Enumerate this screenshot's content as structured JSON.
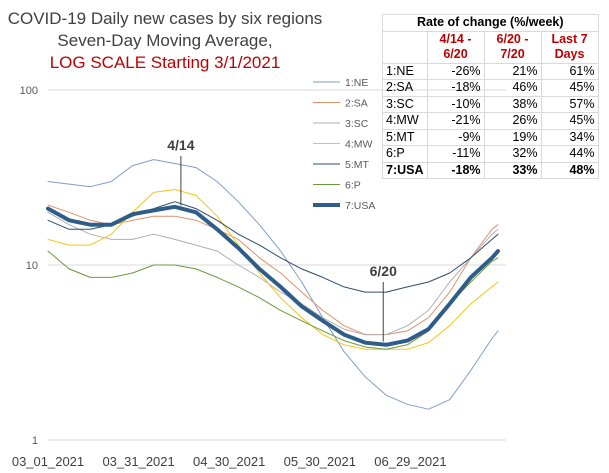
{
  "title": {
    "line1": "COVID-19 Daily new cases by six regions",
    "line2": "Seven-Day Moving Average,",
    "line3": "LOG SCALE Starting 3/1/2021"
  },
  "table": {
    "title": "Rate of change (%/week)",
    "headers": [
      "4/14 - 6/20",
      "6/20 - 7/20",
      "Last 7 Days"
    ],
    "rows": [
      {
        "label": "1:NE",
        "values": [
          "-26%",
          "21%",
          "61%"
        ],
        "bold": false
      },
      {
        "label": "2:SA",
        "values": [
          "-18%",
          "46%",
          "45%"
        ],
        "bold": false
      },
      {
        "label": "3:SC",
        "values": [
          "-10%",
          "38%",
          "57%"
        ],
        "bold": false
      },
      {
        "label": "4:MW",
        "values": [
          "-21%",
          "26%",
          "45%"
        ],
        "bold": false
      },
      {
        "label": "5:MT",
        "values": [
          "-9%",
          "19%",
          "34%"
        ],
        "bold": false
      },
      {
        "label": "6:P",
        "values": [
          "-11%",
          "32%",
          "44%"
        ],
        "bold": false
      },
      {
        "label": "7:USA",
        "values": [
          "-18%",
          "33%",
          "48%"
        ],
        "bold": true
      }
    ]
  },
  "chart_data": {
    "type": "line",
    "yscale": "log",
    "ylim": [
      1,
      100
    ],
    "y_ticks": [
      1,
      10,
      100
    ],
    "x_ticks": [
      "03_01_2021",
      "03_31_2021",
      "04_30_2021",
      "05_30_2021",
      "06_29_2021"
    ],
    "x_range": [
      "03_01_2021",
      "07_28_2021"
    ],
    "legend_position": "top-center",
    "annotations": [
      {
        "label": "4/14",
        "x": "04_14_2021"
      },
      {
        "label": "6/20",
        "x": "06_20_2021"
      }
    ],
    "series": [
      {
        "name": "1:NE",
        "color": "#7f9ec8",
        "width": 1,
        "x": [
          "03_01_2021",
          "03_08_2021",
          "03_15_2021",
          "03_22_2021",
          "03_29_2021",
          "04_05_2021",
          "04_12_2021",
          "04_19_2021",
          "04_26_2021",
          "05_03_2021",
          "05_10_2021",
          "05_17_2021",
          "05_24_2021",
          "05_31_2021",
          "06_07_2021",
          "06_14_2021",
          "06_21_2021",
          "06_28_2021",
          "07_05_2021",
          "07_12_2021",
          "07_19_2021",
          "07_26_2021",
          "07_28_2021"
        ],
        "values": [
          30,
          29,
          28,
          30,
          37,
          40,
          38,
          36,
          30,
          23,
          17,
          12,
          8,
          5,
          3.2,
          2.3,
          1.8,
          1.6,
          1.5,
          1.7,
          2.5,
          3.8,
          4.2
        ]
      },
      {
        "name": "2:SA",
        "color": "#e0926b",
        "width": 1,
        "x": [
          "03_01_2021",
          "03_08_2021",
          "03_15_2021",
          "03_22_2021",
          "03_29_2021",
          "04_05_2021",
          "04_12_2021",
          "04_19_2021",
          "04_26_2021",
          "05_03_2021",
          "05_10_2021",
          "05_17_2021",
          "05_24_2021",
          "05_31_2021",
          "06_07_2021",
          "06_14_2021",
          "06_21_2021",
          "06_28_2021",
          "07_05_2021",
          "07_12_2021",
          "07_19_2021",
          "07_26_2021",
          "07_28_2021"
        ],
        "values": [
          22,
          20,
          18,
          17,
          18,
          19,
          19,
          18,
          16,
          14,
          11,
          9,
          7,
          5.5,
          4.5,
          4,
          4,
          4.2,
          5,
          7,
          11,
          16,
          17
        ]
      },
      {
        "name": "3:SC",
        "color": "#b0b0b0",
        "width": 1,
        "x": [
          "03_01_2021",
          "03_08_2021",
          "03_15_2021",
          "03_22_2021",
          "03_29_2021",
          "04_05_2021",
          "04_12_2021",
          "04_19_2021",
          "04_26_2021",
          "05_03_2021",
          "05_10_2021",
          "05_17_2021",
          "05_24_2021",
          "05_31_2021",
          "06_07_2021",
          "06_14_2021",
          "06_21_2021",
          "06_28_2021",
          "07_05_2021",
          "07_12_2021",
          "07_19_2021",
          "07_26_2021",
          "07_28_2021"
        ],
        "values": [
          20,
          17,
          15,
          14,
          14,
          15,
          14,
          13,
          12,
          10,
          8.5,
          7,
          6,
          5,
          4.3,
          4,
          4,
          4.5,
          5.5,
          8,
          11,
          15,
          16
        ]
      },
      {
        "name": "4:MW",
        "color": "#f5c518",
        "width": 1,
        "x": [
          "03_01_2021",
          "03_08_2021",
          "03_15_2021",
          "03_22_2021",
          "03_29_2021",
          "04_05_2021",
          "04_12_2021",
          "04_19_2021",
          "04_26_2021",
          "05_03_2021",
          "05_10_2021",
          "05_17_2021",
          "05_24_2021",
          "05_31_2021",
          "06_07_2021",
          "06_14_2021",
          "06_21_2021",
          "06_28_2021",
          "07_05_2021",
          "07_12_2021",
          "07_19_2021",
          "07_26_2021",
          "07_28_2021"
        ],
        "values": [
          14,
          13,
          13,
          15,
          20,
          26,
          27,
          25,
          19,
          13,
          9,
          6.5,
          5,
          4,
          3.5,
          3.3,
          3.3,
          3.3,
          3.6,
          4.5,
          6,
          7.5,
          8
        ]
      },
      {
        "name": "5:MT",
        "color": "#2e4d6b",
        "width": 1,
        "x": [
          "03_01_2021",
          "03_08_2021",
          "03_15_2021",
          "03_22_2021",
          "03_29_2021",
          "04_05_2021",
          "04_12_2021",
          "04_19_2021",
          "04_26_2021",
          "05_03_2021",
          "05_10_2021",
          "05_17_2021",
          "05_24_2021",
          "05_31_2021",
          "06_07_2021",
          "06_14_2021",
          "06_21_2021",
          "06_28_2021",
          "07_05_2021",
          "07_12_2021",
          "07_19_2021",
          "07_26_2021",
          "07_28_2021"
        ],
        "values": [
          18,
          16,
          16,
          17,
          19,
          21,
          23,
          21,
          18,
          15,
          13,
          11,
          9.5,
          8.5,
          7.5,
          7,
          7,
          7.5,
          8,
          9,
          11,
          14,
          15
        ]
      },
      {
        "name": "6:P",
        "color": "#6a9a3a",
        "width": 1,
        "x": [
          "03_01_2021",
          "03_08_2021",
          "03_15_2021",
          "03_22_2021",
          "03_29_2021",
          "04_05_2021",
          "04_12_2021",
          "04_19_2021",
          "04_26_2021",
          "05_03_2021",
          "05_10_2021",
          "05_17_2021",
          "05_24_2021",
          "05_31_2021",
          "06_07_2021",
          "06_14_2021",
          "06_21_2021",
          "06_28_2021",
          "07_05_2021",
          "07_12_2021",
          "07_19_2021",
          "07_26_2021",
          "07_28_2021"
        ],
        "values": [
          12,
          9.5,
          8.5,
          8.5,
          9,
          10,
          10,
          9.5,
          8.5,
          7.5,
          6.5,
          5.5,
          4.8,
          4.2,
          3.7,
          3.4,
          3.3,
          3.5,
          4.2,
          6,
          8,
          10.5,
          11
        ]
      },
      {
        "name": "7:USA",
        "color": "#2f5d8a",
        "width": 4,
        "x": [
          "03_01_2021",
          "03_08_2021",
          "03_15_2021",
          "03_22_2021",
          "03_29_2021",
          "04_05_2021",
          "04_12_2021",
          "04_19_2021",
          "04_26_2021",
          "05_03_2021",
          "05_10_2021",
          "05_17_2021",
          "05_24_2021",
          "05_31_2021",
          "06_07_2021",
          "06_14_2021",
          "06_21_2021",
          "06_28_2021",
          "07_05_2021",
          "07_12_2021",
          "07_19_2021",
          "07_26_2021",
          "07_28_2021"
        ],
        "values": [
          21,
          18,
          17,
          17,
          19.5,
          20.5,
          21.5,
          20,
          16,
          12.5,
          9.5,
          7.5,
          5.8,
          4.8,
          4,
          3.6,
          3.5,
          3.7,
          4.3,
          6,
          8.5,
          11,
          12
        ]
      }
    ]
  }
}
